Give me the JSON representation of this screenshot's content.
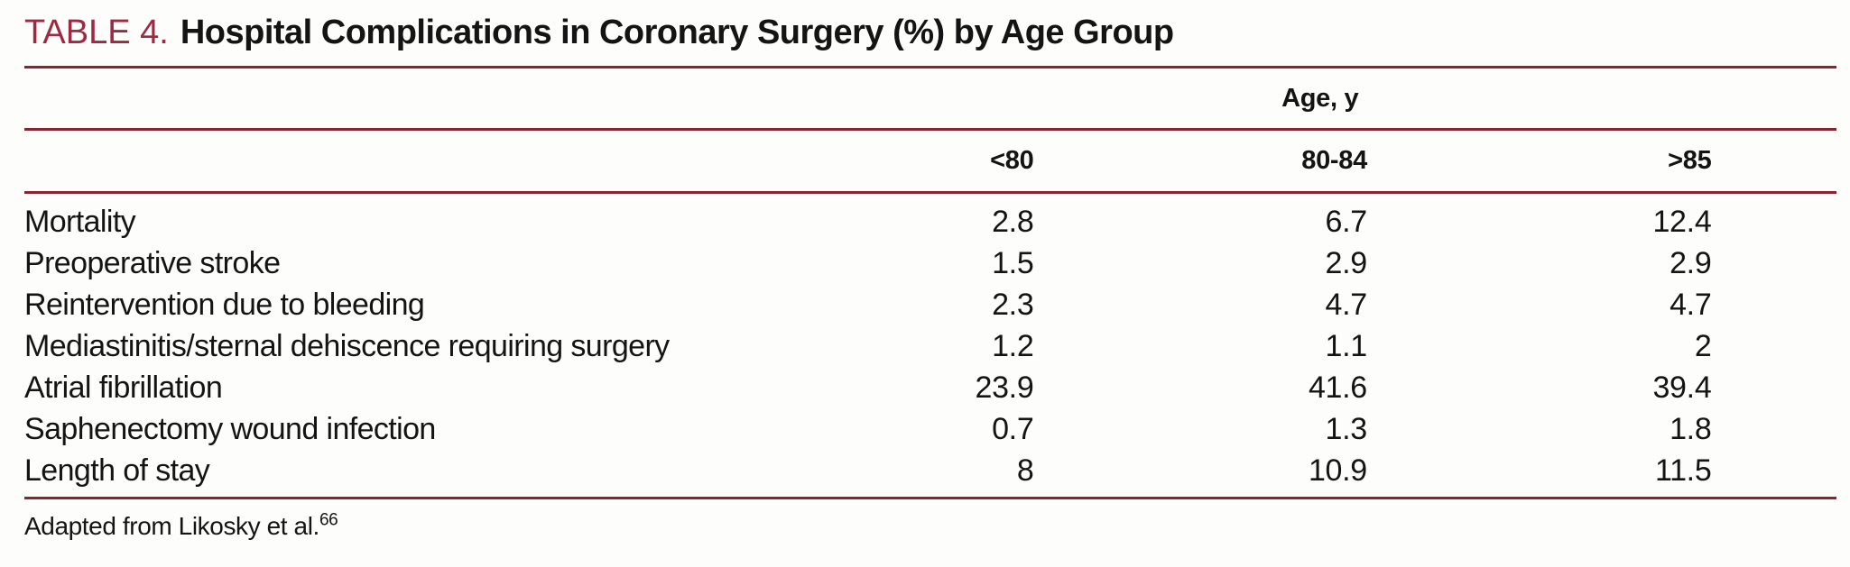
{
  "table": {
    "label": "TABLE 4.",
    "title": "Hospital Complications in Coronary Surgery (%) by Age Group",
    "spanner": "Age, y",
    "columns": [
      "<80",
      "80-84",
      ">85"
    ],
    "rows": [
      {
        "label": "Mortality",
        "values": [
          "2.8",
          "6.7",
          "12.4"
        ]
      },
      {
        "label": "Preoperative stroke",
        "values": [
          "1.5",
          "2.9",
          "2.9"
        ]
      },
      {
        "label": "Reintervention due to bleeding",
        "values": [
          "2.3",
          "4.7",
          "4.7"
        ]
      },
      {
        "label": "Mediastinitis/sternal dehiscence requiring surgery",
        "values": [
          "1.2",
          "1.1",
          "2"
        ]
      },
      {
        "label": "Atrial fibrillation",
        "values": [
          "23.9",
          "41.6",
          "39.4"
        ]
      },
      {
        "label": "Saphenectomy wound infection",
        "values": [
          "0.7",
          "1.3",
          "1.8"
        ]
      },
      {
        "label": "Length of stay",
        "values": [
          "8",
          "10.9",
          "11.5"
        ]
      }
    ],
    "footnote": {
      "text": "Adapted from Likosky et al.",
      "reference": "66"
    }
  },
  "colors": {
    "rule": "#8a2433",
    "title_accent": "#9e2943",
    "text": "#141414",
    "background": "#fdfdfc"
  }
}
